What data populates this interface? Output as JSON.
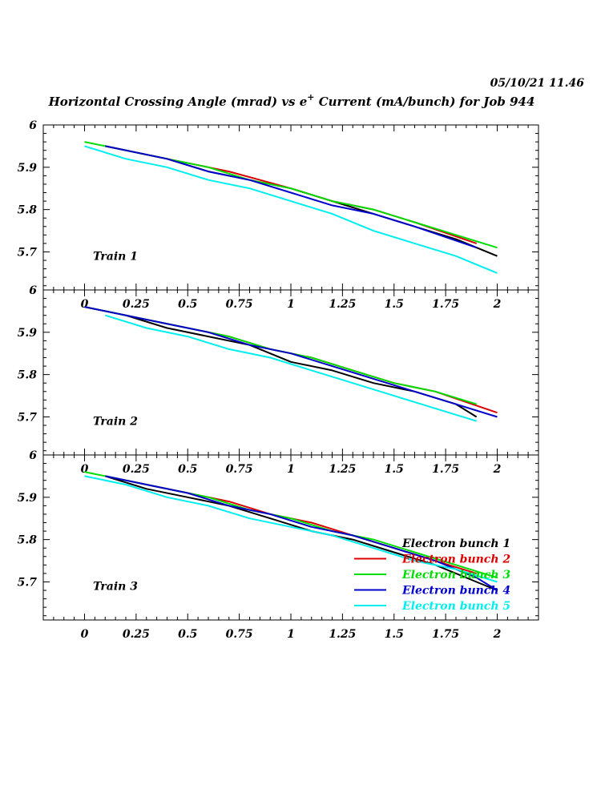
{
  "header": {
    "timestamp": "05/10/21   11.46",
    "title_main": "Horizontal Crossing Angle (mrad) vs e",
    "title_sup": "+",
    "title_rest": " Current (mA/bunch) for Job 944"
  },
  "chart_data": {
    "type": "line",
    "xlabel": "",
    "ylabel": "",
    "xlim": [
      -0.2,
      2.2
    ],
    "ylim": [
      5.61,
      6.0
    ],
    "x_ticks": [
      "0",
      "0.25",
      "0.5",
      "0.75",
      "1",
      "1.25",
      "1.5",
      "1.75",
      "2"
    ],
    "y_ticks": [
      "6",
      "5.9",
      "5.8",
      "5.7"
    ],
    "legend": {
      "placement": "bottom-right of last panel",
      "entries": [
        {
          "label": "Electron bunch 1",
          "color": "#000000"
        },
        {
          "label": "Electron bunch 2",
          "color": "#dd0000"
        },
        {
          "label": "Electron bunch 3",
          "color": "#00dd00"
        },
        {
          "label": "Electron bunch 4",
          "color": "#0000cc"
        },
        {
          "label": "Electron bunch 5",
          "color": "#00eeee"
        }
      ]
    },
    "panels": [
      {
        "label": "Train 1",
        "series": [
          {
            "color": "#000000",
            "points": [
              [
                0.1,
                5.95
              ],
              [
                0.4,
                5.92
              ],
              [
                0.6,
                5.89
              ],
              [
                0.8,
                5.87
              ],
              [
                1.0,
                5.85
              ],
              [
                1.2,
                5.82
              ],
              [
                1.4,
                5.79
              ],
              [
                1.6,
                5.76
              ],
              [
                1.8,
                5.73
              ],
              [
                2.0,
                5.69
              ]
            ]
          },
          {
            "color": "#dd0000",
            "points": [
              [
                0.1,
                5.95
              ],
              [
                0.4,
                5.92
              ],
              [
                0.6,
                5.9
              ],
              [
                0.7,
                5.89
              ],
              [
                1.0,
                5.85
              ],
              [
                1.2,
                5.82
              ],
              [
                1.4,
                5.8
              ],
              [
                1.6,
                5.77
              ],
              [
                1.9,
                5.72
              ]
            ]
          },
          {
            "color": "#00dd00",
            "points": [
              [
                0.0,
                5.96
              ],
              [
                0.1,
                5.95
              ],
              [
                0.4,
                5.92
              ],
              [
                0.6,
                5.9
              ],
              [
                0.8,
                5.87
              ],
              [
                1.0,
                5.85
              ],
              [
                1.2,
                5.82
              ],
              [
                1.4,
                5.8
              ],
              [
                1.6,
                5.77
              ],
              [
                1.8,
                5.74
              ],
              [
                2.0,
                5.71
              ]
            ]
          },
          {
            "color": "#0000cc",
            "points": [
              [
                0.1,
                5.95
              ],
              [
                0.4,
                5.92
              ],
              [
                0.6,
                5.89
              ],
              [
                0.8,
                5.87
              ],
              [
                1.0,
                5.84
              ],
              [
                1.2,
                5.81
              ],
              [
                1.4,
                5.79
              ],
              [
                1.6,
                5.76
              ],
              [
                1.9,
                5.71
              ]
            ]
          },
          {
            "color": "#00eeee",
            "points": [
              [
                0.0,
                5.95
              ],
              [
                0.2,
                5.92
              ],
              [
                0.4,
                5.9
              ],
              [
                0.6,
                5.87
              ],
              [
                0.8,
                5.85
              ],
              [
                1.0,
                5.82
              ],
              [
                1.2,
                5.79
              ],
              [
                1.4,
                5.75
              ],
              [
                1.6,
                5.72
              ],
              [
                1.8,
                5.69
              ],
              [
                2.0,
                5.65
              ]
            ]
          }
        ]
      },
      {
        "label": "Train 2",
        "series": [
          {
            "color": "#000000",
            "points": [
              [
                0.0,
                5.96
              ],
              [
                0.2,
                5.94
              ],
              [
                0.4,
                5.91
              ],
              [
                0.6,
                5.89
              ],
              [
                0.8,
                5.87
              ],
              [
                1.0,
                5.83
              ],
              [
                1.2,
                5.81
              ],
              [
                1.4,
                5.78
              ],
              [
                1.6,
                5.76
              ],
              [
                1.8,
                5.73
              ],
              [
                1.9,
                5.7
              ]
            ]
          },
          {
            "color": "#dd0000",
            "points": [
              [
                0.0,
                5.96
              ],
              [
                0.3,
                5.93
              ],
              [
                0.5,
                5.91
              ],
              [
                0.7,
                5.89
              ],
              [
                0.9,
                5.86
              ],
              [
                1.1,
                5.84
              ],
              [
                1.3,
                5.81
              ],
              [
                1.5,
                5.78
              ],
              [
                1.7,
                5.76
              ],
              [
                2.0,
                5.71
              ]
            ]
          },
          {
            "color": "#00dd00",
            "points": [
              [
                0.0,
                5.96
              ],
              [
                0.3,
                5.93
              ],
              [
                0.5,
                5.91
              ],
              [
                0.7,
                5.89
              ],
              [
                0.9,
                5.86
              ],
              [
                1.1,
                5.84
              ],
              [
                1.3,
                5.81
              ],
              [
                1.5,
                5.78
              ],
              [
                1.7,
                5.76
              ],
              [
                1.9,
                5.73
              ]
            ]
          },
          {
            "color": "#0000cc",
            "points": [
              [
                0.0,
                5.96
              ],
              [
                0.3,
                5.93
              ],
              [
                0.6,
                5.9
              ],
              [
                0.8,
                5.87
              ],
              [
                1.0,
                5.85
              ],
              [
                1.2,
                5.82
              ],
              [
                1.4,
                5.79
              ],
              [
                1.6,
                5.76
              ],
              [
                1.8,
                5.73
              ],
              [
                2.0,
                5.7
              ]
            ]
          },
          {
            "color": "#00eeee",
            "points": [
              [
                0.1,
                5.94
              ],
              [
                0.3,
                5.91
              ],
              [
                0.5,
                5.89
              ],
              [
                0.7,
                5.86
              ],
              [
                0.9,
                5.84
              ],
              [
                1.1,
                5.81
              ],
              [
                1.3,
                5.78
              ],
              [
                1.5,
                5.75
              ],
              [
                1.7,
                5.72
              ],
              [
                1.9,
                5.69
              ]
            ]
          }
        ]
      },
      {
        "label": "Train 3",
        "series": [
          {
            "color": "#000000",
            "points": [
              [
                0.1,
                5.95
              ],
              [
                0.3,
                5.92
              ],
              [
                0.5,
                5.9
              ],
              [
                0.7,
                5.88
              ],
              [
                0.9,
                5.85
              ],
              [
                1.1,
                5.82
              ],
              [
                1.3,
                5.8
              ],
              [
                1.5,
                5.77
              ],
              [
                1.7,
                5.74
              ],
              [
                1.9,
                5.7
              ],
              [
                2.0,
                5.68
              ]
            ]
          },
          {
            "color": "#dd0000",
            "points": [
              [
                0.1,
                5.95
              ],
              [
                0.3,
                5.93
              ],
              [
                0.5,
                5.91
              ],
              [
                0.7,
                5.89
              ],
              [
                0.9,
                5.86
              ],
              [
                1.1,
                5.84
              ],
              [
                1.3,
                5.81
              ],
              [
                1.5,
                5.78
              ],
              [
                1.7,
                5.75
              ],
              [
                1.9,
                5.72
              ]
            ]
          },
          {
            "color": "#00dd00",
            "points": [
              [
                0.0,
                5.96
              ],
              [
                0.1,
                5.95
              ],
              [
                0.3,
                5.93
              ],
              [
                0.6,
                5.9
              ],
              [
                0.8,
                5.87
              ],
              [
                1.0,
                5.85
              ],
              [
                1.2,
                5.82
              ],
              [
                1.4,
                5.8
              ],
              [
                1.6,
                5.77
              ],
              [
                1.8,
                5.74
              ],
              [
                2.0,
                5.71
              ]
            ]
          },
          {
            "color": "#0000cc",
            "points": [
              [
                0.1,
                5.95
              ],
              [
                0.3,
                5.93
              ],
              [
                0.5,
                5.91
              ],
              [
                0.7,
                5.88
              ],
              [
                0.9,
                5.86
              ],
              [
                1.1,
                5.83
              ],
              [
                1.3,
                5.81
              ],
              [
                1.5,
                5.78
              ],
              [
                1.7,
                5.75
              ],
              [
                1.9,
                5.71
              ],
              [
                2.0,
                5.68
              ]
            ]
          },
          {
            "color": "#00eeee",
            "points": [
              [
                0.0,
                5.95
              ],
              [
                0.2,
                5.93
              ],
              [
                0.4,
                5.9
              ],
              [
                0.6,
                5.88
              ],
              [
                0.8,
                5.85
              ],
              [
                1.0,
                5.83
              ],
              [
                1.2,
                5.81
              ],
              [
                1.4,
                5.78
              ],
              [
                1.6,
                5.75
              ],
              [
                1.8,
                5.73
              ],
              [
                2.0,
                5.7
              ]
            ]
          }
        ]
      }
    ]
  }
}
